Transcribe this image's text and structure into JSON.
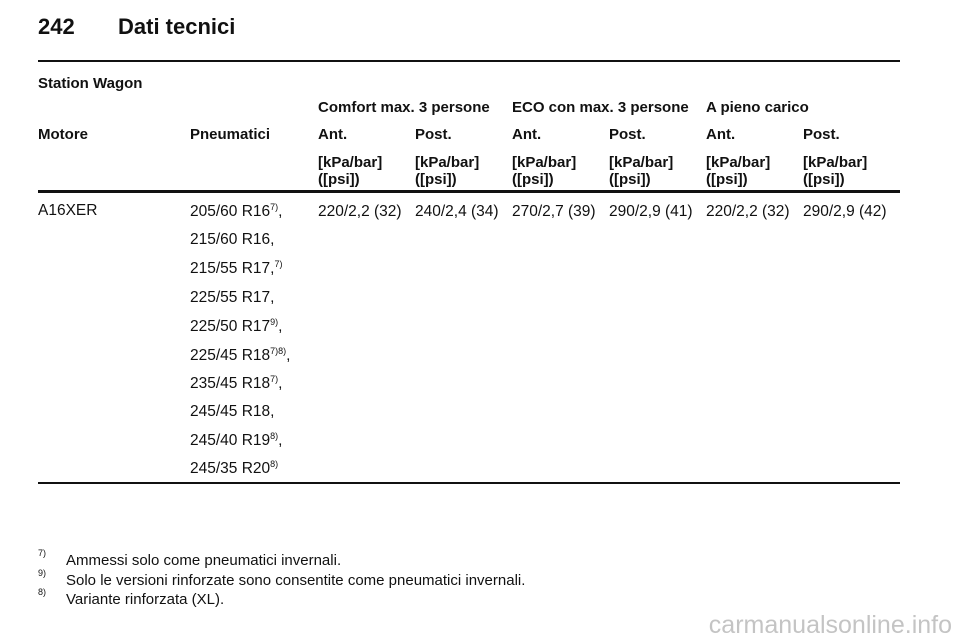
{
  "header": {
    "page_number": "242",
    "title": "Dati tecnici"
  },
  "section_title": "Station Wagon",
  "table": {
    "group_headers": [
      "Comfort max. 3 persone",
      "ECO con max. 3 persone",
      "A pieno carico"
    ],
    "col_engine": "Motore",
    "col_tyres": "Pneumatici",
    "col_ant": "Ant.",
    "col_post": "Post.",
    "unit_line1": "[kPa/bar]",
    "unit_line2": "([psi])",
    "row": {
      "engine": "A16XER",
      "tyres": [
        {
          "size": "205/60 R16",
          "note": "7)",
          "suffix": ","
        },
        {
          "size": "215/60 R16,",
          "note": "",
          "suffix": ""
        },
        {
          "size": "215/55 R17,",
          "note": "7)",
          "suffix": ""
        },
        {
          "size": "225/55 R17,",
          "note": "",
          "suffix": ""
        },
        {
          "size": "225/50 R17",
          "note": "9)",
          "suffix": ","
        },
        {
          "size": "225/45 R18",
          "note": "7)8)",
          "suffix": ","
        },
        {
          "size": "235/45 R18",
          "note": "7)",
          "suffix": ","
        },
        {
          "size": "245/45 R18,",
          "note": "",
          "suffix": ""
        },
        {
          "size": "245/40 R19",
          "note": "8)",
          "suffix": ","
        },
        {
          "size": "245/35 R20",
          "note": "8)",
          "suffix": ""
        }
      ],
      "pressures": [
        "220/2,2 (32)",
        "240/2,4 (34)",
        "270/2,7 (39)",
        "290/2,9 (41)",
        "220/2,2 (32)",
        "290/2,9 (42)"
      ]
    }
  },
  "footnotes": [
    {
      "mark": "7)",
      "text": "Ammessi solo come pneumatici invernali."
    },
    {
      "mark": "9)",
      "text": "Solo le versioni rinforzate sono consentite come pneumatici invernali."
    },
    {
      "mark": "8)",
      "text": "Variante rinforzata (XL)."
    }
  ],
  "watermark": "carmanualsonline.info"
}
